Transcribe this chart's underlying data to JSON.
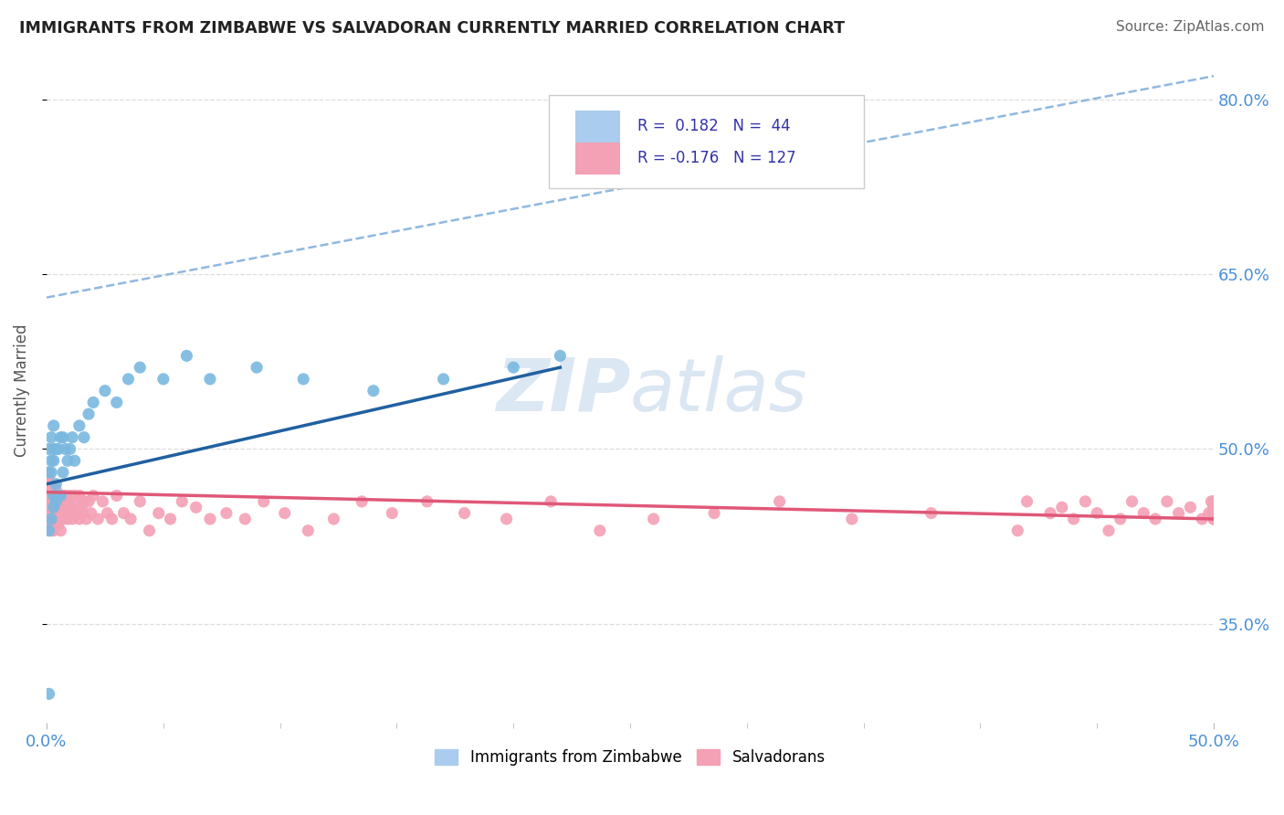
{
  "title": "IMMIGRANTS FROM ZIMBABWE VS SALVADORAN CURRENTLY MARRIED CORRELATION CHART",
  "source": "Source: ZipAtlas.com",
  "ylabel": "Currently Married",
  "y_tick_labels": [
    "35.0%",
    "50.0%",
    "65.0%",
    "80.0%"
  ],
  "y_tick_values": [
    0.35,
    0.5,
    0.65,
    0.8
  ],
  "x_range": [
    0.0,
    0.5
  ],
  "y_range": [
    0.265,
    0.835
  ],
  "blue_scatter_color": "#7ab8e0",
  "pink_scatter_color": "#f4a0b5",
  "blue_line_color": "#2060a0",
  "pink_line_color": "#e05878",
  "dashed_line_color": "#90b8e0",
  "title_color": "#222222",
  "source_color": "#666666",
  "tick_label_color": "#4a90d9",
  "ylabel_color": "#555555",
  "watermark_color": "#c5d8ee",
  "grid_color": "#dddddd",
  "legend_border_color": "#cccccc",
  "legend_text_color": "#3333aa",
  "legend_box1_color": "#aaccee",
  "legend_box2_color": "#f4a0b5",
  "blue_line_x0": 0.0,
  "blue_line_y0": 0.47,
  "blue_line_x1": 0.22,
  "blue_line_y1": 0.57,
  "pink_line_x0": 0.0,
  "pink_line_y0": 0.463,
  "pink_line_x1": 0.5,
  "pink_line_y1": 0.44,
  "dashed_line_x0": 0.0,
  "dashed_line_y0": 0.63,
  "dashed_line_x1": 0.5,
  "dashed_line_y1": 0.82,
  "zim_x": [
    0.001,
    0.001,
    0.001,
    0.001,
    0.002,
    0.002,
    0.002,
    0.002,
    0.003,
    0.003,
    0.003,
    0.003,
    0.003,
    0.004,
    0.004,
    0.004,
    0.005,
    0.005,
    0.006,
    0.006,
    0.007,
    0.007,
    0.008,
    0.009,
    0.01,
    0.011,
    0.012,
    0.014,
    0.016,
    0.018,
    0.02,
    0.025,
    0.03,
    0.035,
    0.04,
    0.05,
    0.06,
    0.07,
    0.09,
    0.11,
    0.14,
    0.17,
    0.2,
    0.22
  ],
  "zim_y": [
    0.29,
    0.43,
    0.48,
    0.5,
    0.44,
    0.48,
    0.49,
    0.51,
    0.45,
    0.46,
    0.49,
    0.5,
    0.52,
    0.455,
    0.47,
    0.5,
    0.46,
    0.5,
    0.46,
    0.51,
    0.48,
    0.51,
    0.5,
    0.49,
    0.5,
    0.51,
    0.49,
    0.52,
    0.51,
    0.53,
    0.54,
    0.55,
    0.54,
    0.56,
    0.57,
    0.56,
    0.58,
    0.56,
    0.57,
    0.56,
    0.55,
    0.56,
    0.57,
    0.58
  ],
  "sal_x": [
    0.001,
    0.001,
    0.001,
    0.001,
    0.001,
    0.001,
    0.001,
    0.001,
    0.001,
    0.001,
    0.002,
    0.002,
    0.002,
    0.002,
    0.002,
    0.002,
    0.002,
    0.002,
    0.002,
    0.002,
    0.003,
    0.003,
    0.003,
    0.003,
    0.003,
    0.003,
    0.003,
    0.004,
    0.004,
    0.004,
    0.004,
    0.004,
    0.005,
    0.005,
    0.005,
    0.005,
    0.006,
    0.006,
    0.006,
    0.007,
    0.007,
    0.007,
    0.008,
    0.008,
    0.008,
    0.009,
    0.009,
    0.01,
    0.01,
    0.011,
    0.011,
    0.012,
    0.012,
    0.013,
    0.014,
    0.014,
    0.015,
    0.015,
    0.016,
    0.017,
    0.018,
    0.019,
    0.02,
    0.022,
    0.024,
    0.026,
    0.028,
    0.03,
    0.033,
    0.036,
    0.04,
    0.044,
    0.048,
    0.053,
    0.058,
    0.064,
    0.07,
    0.077,
    0.085,
    0.093,
    0.102,
    0.112,
    0.123,
    0.135,
    0.148,
    0.163,
    0.179,
    0.197,
    0.216,
    0.237,
    0.26,
    0.286,
    0.314,
    0.345,
    0.379,
    0.416,
    0.42,
    0.43,
    0.435,
    0.44,
    0.445,
    0.45,
    0.455,
    0.46,
    0.465,
    0.47,
    0.475,
    0.48,
    0.485,
    0.49,
    0.495,
    0.498,
    0.499,
    0.5,
    0.5,
    0.5,
    0.5,
    0.5,
    0.5,
    0.5,
    0.5,
    0.5,
    0.5
  ],
  "sal_y": [
    0.46,
    0.465,
    0.47,
    0.475,
    0.48,
    0.455,
    0.45,
    0.445,
    0.44,
    0.435,
    0.43,
    0.46,
    0.465,
    0.47,
    0.455,
    0.445,
    0.45,
    0.46,
    0.44,
    0.435,
    0.455,
    0.46,
    0.465,
    0.43,
    0.445,
    0.435,
    0.44,
    0.455,
    0.46,
    0.465,
    0.435,
    0.445,
    0.46,
    0.44,
    0.45,
    0.435,
    0.455,
    0.445,
    0.43,
    0.46,
    0.44,
    0.45,
    0.455,
    0.445,
    0.46,
    0.44,
    0.455,
    0.45,
    0.46,
    0.445,
    0.44,
    0.455,
    0.46,
    0.445,
    0.44,
    0.46,
    0.45,
    0.445,
    0.455,
    0.44,
    0.455,
    0.445,
    0.46,
    0.44,
    0.455,
    0.445,
    0.44,
    0.46,
    0.445,
    0.44,
    0.455,
    0.43,
    0.445,
    0.44,
    0.455,
    0.45,
    0.44,
    0.445,
    0.44,
    0.455,
    0.445,
    0.43,
    0.44,
    0.455,
    0.445,
    0.455,
    0.445,
    0.44,
    0.455,
    0.43,
    0.44,
    0.445,
    0.455,
    0.44,
    0.445,
    0.43,
    0.455,
    0.445,
    0.45,
    0.44,
    0.455,
    0.445,
    0.43,
    0.44,
    0.455,
    0.445,
    0.44,
    0.455,
    0.445,
    0.45,
    0.44,
    0.445,
    0.455,
    0.44,
    0.445,
    0.45,
    0.44,
    0.455,
    0.445,
    0.44,
    0.455,
    0.445,
    0.45
  ]
}
